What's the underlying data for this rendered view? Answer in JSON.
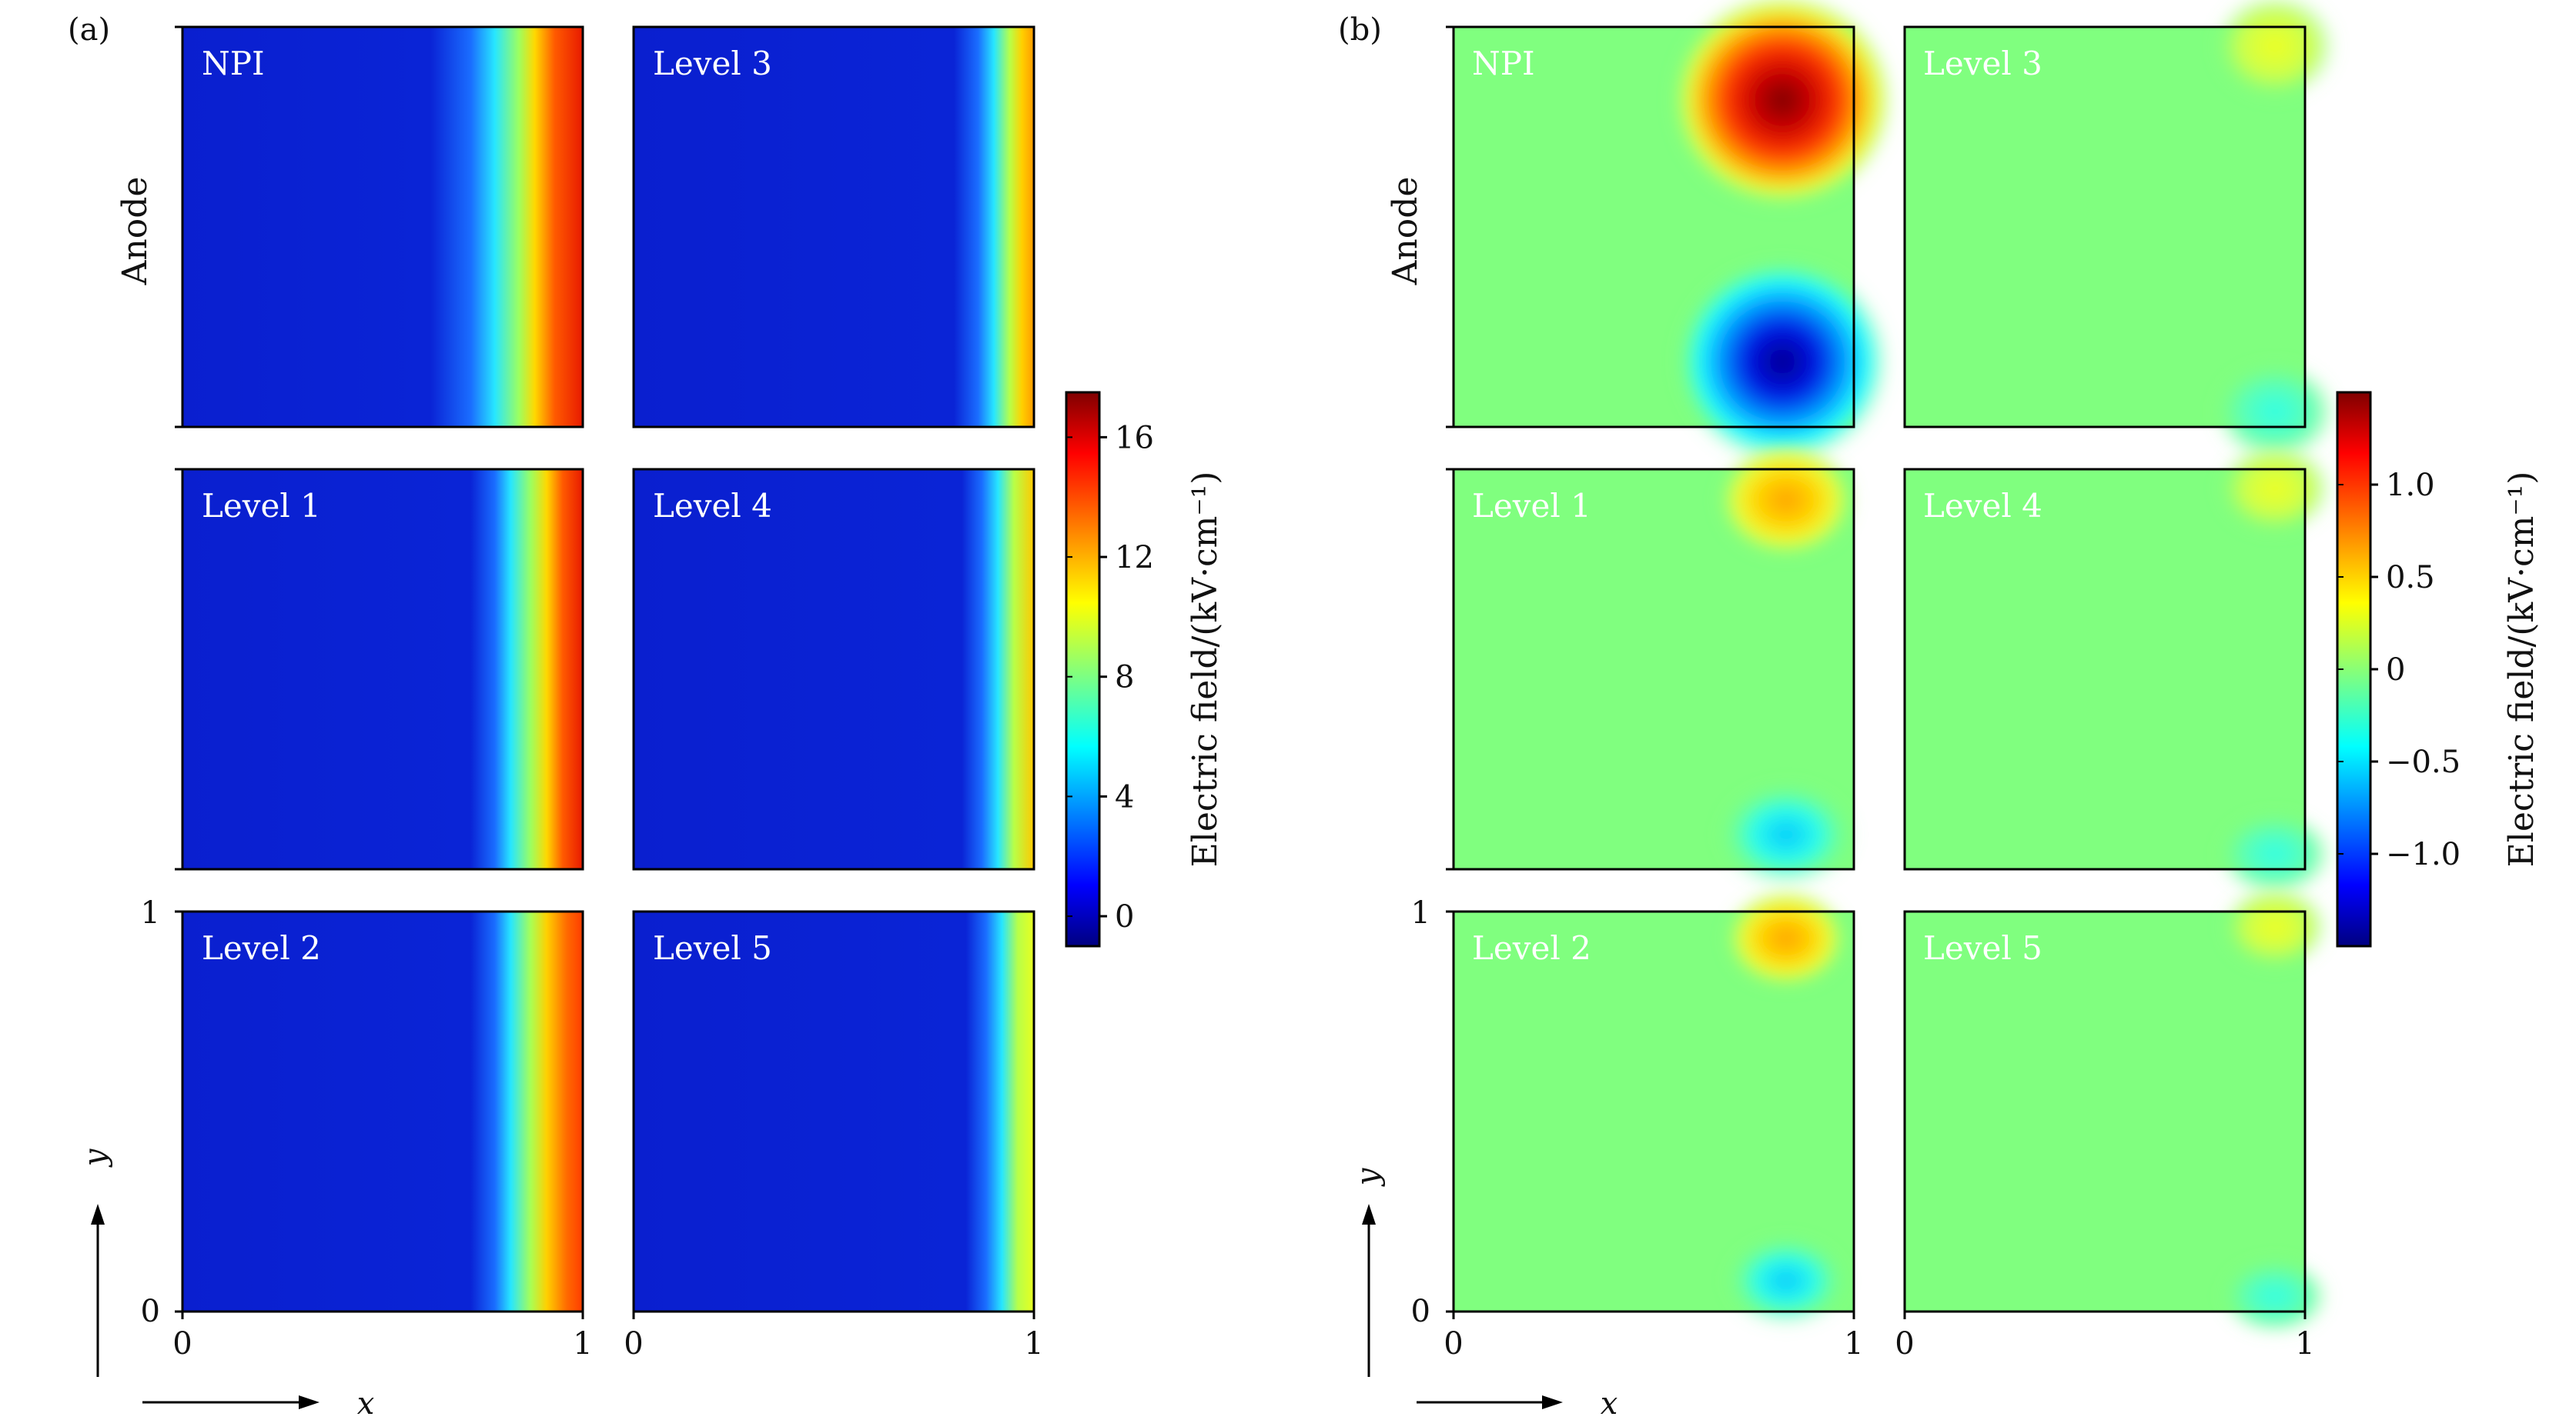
{
  "figure": {
    "panels": [
      {
        "label": "(a)",
        "side_label": "Anode",
        "colorbar": {
          "label": "Electric field/(kV·cm⁻¹)",
          "range": [
            -1,
            17.5
          ],
          "ticks": [
            "0",
            "4",
            "8",
            "12",
            "16"
          ],
          "tick_values": [
            0,
            4,
            8,
            12,
            16
          ]
        },
        "subplots": [
          {
            "title": "NPI"
          },
          {
            "title": "Level 3"
          },
          {
            "title": "Level 1"
          },
          {
            "title": "Level 4"
          },
          {
            "title": "Level 2"
          },
          {
            "title": "Level 5"
          }
        ],
        "x_ticks": [
          "0",
          "1"
        ],
        "y_ticks": [
          "0",
          "1"
        ],
        "x_label": "x",
        "y_label": "y"
      },
      {
        "label": "(b)",
        "side_label": "Anode",
        "colorbar": {
          "label": "Electric field/(kV·cm⁻¹)",
          "range": [
            -1.5,
            1.5
          ],
          "ticks": [
            "1.0",
            "0.5",
            "0",
            "−0.5",
            "−1.0"
          ],
          "tick_values": [
            1.0,
            0.5,
            0,
            -0.5,
            -1.0
          ]
        },
        "subplots": [
          {
            "title": "NPI"
          },
          {
            "title": "Level 3"
          },
          {
            "title": "Level 1"
          },
          {
            "title": "Level 4"
          },
          {
            "title": "Level 2"
          },
          {
            "title": "Level 5"
          }
        ],
        "x_ticks": [
          "0",
          "1"
        ],
        "y_ticks": [
          "0",
          "1"
        ],
        "x_label": "x",
        "y_label": "y"
      }
    ]
  },
  "chart_data": [
    {
      "type": "heatmap",
      "title": "(a)",
      "colormap": "jet",
      "xlim": [
        0,
        1
      ],
      "ylim": [
        0,
        1
      ],
      "xlabel": "x",
      "ylabel": "y",
      "colorbar_label": "Electric field/(kV·cm⁻¹)",
      "colorbar_range": [
        -1,
        17.5
      ],
      "fields": [
        {
          "name": "NPI",
          "description_profile": "field near 0 for x<0.7, rising to ~16.5 at x≈1 (curved front)",
          "x_profile": [
            0,
            0.5,
            0.7,
            0.8,
            0.9,
            1.0
          ],
          "values": [
            0,
            0,
            1,
            6,
            13,
            16.5
          ]
        },
        {
          "name": "Level 1",
          "x_profile": [
            0,
            0.5,
            0.75,
            0.85,
            0.95,
            1.0
          ],
          "values": [
            0,
            0,
            1,
            7,
            14,
            16
          ]
        },
        {
          "name": "Level 2",
          "x_profile": [
            0,
            0.5,
            0.75,
            0.85,
            0.95,
            1.0
          ],
          "values": [
            0,
            0,
            1,
            7,
            13.5,
            15.5
          ]
        },
        {
          "name": "Level 3",
          "x_profile": [
            0,
            0.7,
            0.85,
            0.92,
            0.97,
            1.0
          ],
          "values": [
            0,
            0,
            1,
            6,
            10,
            12.5
          ]
        },
        {
          "name": "Level 4",
          "x_profile": [
            0,
            0.7,
            0.85,
            0.92,
            0.97,
            1.0
          ],
          "values": [
            0,
            0,
            1,
            5,
            9,
            11
          ]
        },
        {
          "name": "Level 5",
          "x_profile": [
            0,
            0.7,
            0.85,
            0.92,
            0.97,
            1.0
          ],
          "values": [
            0,
            0,
            1,
            5,
            8.5,
            10
          ]
        }
      ]
    },
    {
      "type": "heatmap",
      "title": "(b)",
      "colormap": "jet",
      "xlim": [
        0,
        1
      ],
      "ylim": [
        0,
        1
      ],
      "xlabel": "x",
      "ylabel": "y",
      "colorbar_label": "Electric field/(kV·cm⁻¹)",
      "colorbar_range": [
        -1.5,
        1.5
      ],
      "fields": [
        {
          "name": "NPI",
          "background": 0,
          "blobs": [
            {
              "x": 0.82,
              "y": 0.88,
              "peak": 1.45
            },
            {
              "x": 0.82,
              "y": 0.15,
              "peak": -1.45
            }
          ]
        },
        {
          "name": "Level 1",
          "background": 0,
          "blobs": [
            {
              "x": 0.82,
              "y": 0.92,
              "peak": 0.7
            },
            {
              "x": 0.82,
              "y": 0.1,
              "peak": -0.55
            }
          ]
        },
        {
          "name": "Level 2",
          "background": 0,
          "blobs": [
            {
              "x": 0.82,
              "y": 0.92,
              "peak": 0.5
            },
            {
              "x": 0.82,
              "y": 0.08,
              "peak": -0.4
            }
          ]
        },
        {
          "name": "Level 3",
          "background": 0,
          "blobs": [
            {
              "x": 0.92,
              "y": 0.95,
              "peak": 0.3
            },
            {
              "x": 0.92,
              "y": 0.05,
              "peak": -0.3
            }
          ]
        },
        {
          "name": "Level 4",
          "background": 0,
          "blobs": [
            {
              "x": 0.92,
              "y": 0.95,
              "peak": 0.25
            },
            {
              "x": 0.92,
              "y": 0.05,
              "peak": -0.25
            }
          ]
        },
        {
          "name": "Level 5",
          "background": 0,
          "blobs": [
            {
              "x": 0.92,
              "y": 0.95,
              "peak": 0.2
            },
            {
              "x": 0.92,
              "y": 0.05,
              "peak": -0.2
            }
          ]
        }
      ]
    }
  ]
}
